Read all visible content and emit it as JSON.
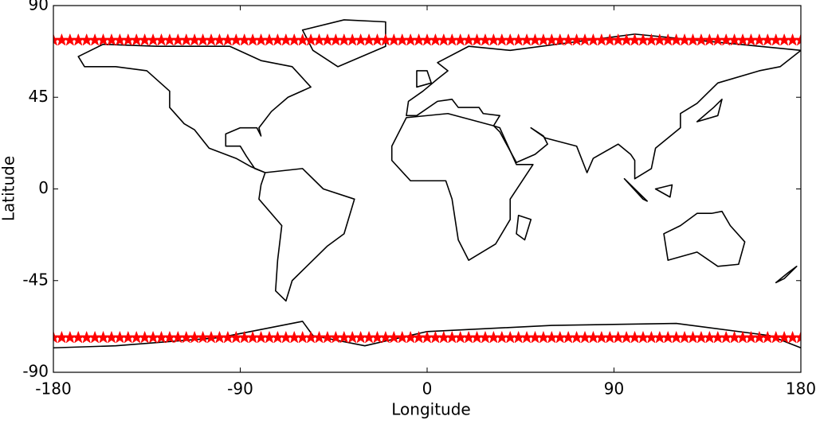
{
  "chart_data": {
    "type": "scatter",
    "xlabel": "Longitude",
    "ylabel": "Latitude",
    "xlim": [
      -180,
      180
    ],
    "ylim": [
      -90,
      90
    ],
    "xticks": [
      -180,
      -90,
      0,
      90,
      180
    ],
    "yticks": [
      -90,
      -45,
      0,
      45,
      90
    ],
    "grid": false,
    "x": [
      -180,
      -176,
      -172,
      -168,
      -164,
      -160,
      -156,
      -152,
      -148,
      -144,
      -140,
      -136,
      -132,
      -128,
      -124,
      -120,
      -116,
      -112,
      -108,
      -104,
      -100,
      -96,
      -92,
      -88,
      -84,
      -80,
      -76,
      -72,
      -68,
      -64,
      -60,
      -56,
      -52,
      -48,
      -44,
      -40,
      -36,
      -32,
      -28,
      -24,
      -20,
      -16,
      -12,
      -8,
      -4,
      0,
      4,
      8,
      12,
      16,
      20,
      24,
      28,
      32,
      36,
      40,
      44,
      48,
      52,
      56,
      60,
      64,
      68,
      72,
      76,
      80,
      84,
      88,
      92,
      96,
      100,
      104,
      108,
      112,
      116,
      120,
      124,
      128,
      132,
      136,
      140,
      144,
      148,
      152,
      156,
      160,
      164,
      168,
      172,
      176,
      180
    ],
    "series": [
      {
        "color": "#ff0000",
        "values": [
          73,
          73,
          73,
          73,
          73,
          73,
          73,
          73,
          73,
          73,
          73,
          73,
          73,
          73,
          73,
          73,
          73,
          73,
          73,
          73,
          73,
          73,
          73,
          73,
          73,
          73,
          73,
          73,
          73,
          73,
          73,
          73,
          73,
          73,
          73,
          73,
          73,
          73,
          73,
          73,
          73,
          73,
          73,
          73,
          73,
          73,
          73,
          73,
          73,
          73,
          73,
          73,
          73,
          73,
          73,
          73,
          73,
          73,
          73,
          73,
          73,
          73,
          73,
          73,
          73,
          73,
          73,
          73,
          73,
          73,
          73,
          73,
          73,
          73,
          73,
          73,
          73,
          73,
          73,
          73,
          73,
          73,
          73,
          73,
          73,
          73,
          73,
          73,
          73,
          73,
          73
        ]
      },
      {
        "color": "#ff0000",
        "values": [
          -73,
          -73,
          -73,
          -73,
          -73,
          -73,
          -73,
          -73,
          -73,
          -73,
          -73,
          -73,
          -73,
          -73,
          -73,
          -73,
          -73,
          -73,
          -73,
          -73,
          -73,
          -73,
          -73,
          -73,
          -73,
          -73,
          -73,
          -73,
          -73,
          -73,
          -73,
          -73,
          -73,
          -73,
          -73,
          -73,
          -73,
          -73,
          -73,
          -73,
          -73,
          -73,
          -73,
          -73,
          -73,
          -73,
          -73,
          -73,
          -73,
          -73,
          -73,
          -73,
          -73,
          -73,
          -73,
          -73,
          -73,
          -73,
          -73,
          -73,
          -73,
          -73,
          -73,
          -73,
          -73,
          -73,
          -73,
          -73,
          -73,
          -73,
          -73,
          -73,
          -73,
          -73,
          -73,
          -73,
          -73,
          -73,
          -73,
          -73,
          -73,
          -73,
          -73,
          -73,
          -73,
          -73,
          -73,
          -73,
          -73,
          -73,
          -73
        ]
      }
    ]
  }
}
